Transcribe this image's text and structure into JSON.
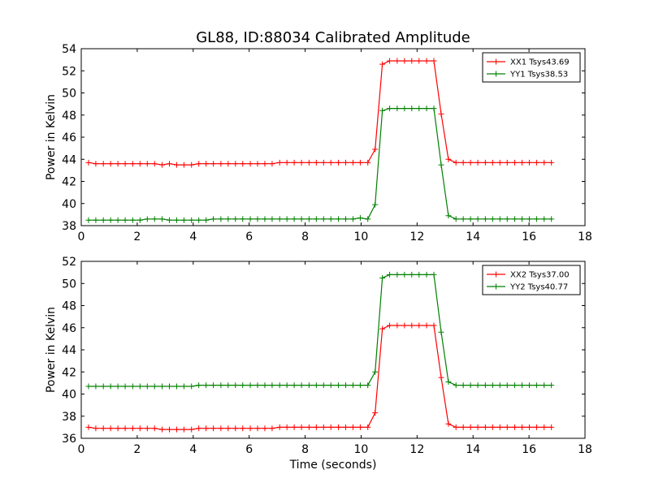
{
  "figure": {
    "title": "GL88, ID:88034 Calibrated Amplitude"
  },
  "chart_data": [
    {
      "type": "line",
      "xlabel": "",
      "ylabel": "Power in Kelvin",
      "xlim": [
        0,
        18
      ],
      "ylim": [
        38,
        54
      ],
      "xticks": [
        0,
        2,
        4,
        6,
        8,
        10,
        12,
        14,
        16,
        18
      ],
      "yticks": [
        38,
        40,
        42,
        44,
        46,
        48,
        50,
        52,
        54
      ],
      "legend_position": "top-right",
      "grid": false,
      "series": [
        {
          "name": "XX1 Tsys43.69",
          "color": "#ff0000",
          "x": [
            0.26,
            0.52,
            0.79,
            1.05,
            1.31,
            1.57,
            1.84,
            2.1,
            2.36,
            2.62,
            2.89,
            3.15,
            3.41,
            3.67,
            3.94,
            4.2,
            4.46,
            4.72,
            4.99,
            5.25,
            5.51,
            5.77,
            6.04,
            6.3,
            6.56,
            6.82,
            7.09,
            7.35,
            7.61,
            7.87,
            8.14,
            8.4,
            8.66,
            8.92,
            9.19,
            9.45,
            9.71,
            9.97,
            10.24,
            10.5,
            10.76,
            11.02,
            11.29,
            11.55,
            11.81,
            12.07,
            12.34,
            12.6,
            12.86,
            13.12,
            13.39,
            13.65,
            13.91,
            14.17,
            14.44,
            14.7,
            14.96,
            15.22,
            15.49,
            15.75,
            16.01,
            16.27,
            16.54,
            16.8
          ],
          "y": [
            43.7,
            43.6,
            43.6,
            43.6,
            43.6,
            43.6,
            43.6,
            43.6,
            43.6,
            43.6,
            43.5,
            43.6,
            43.5,
            43.5,
            43.5,
            43.6,
            43.6,
            43.6,
            43.6,
            43.6,
            43.6,
            43.6,
            43.6,
            43.6,
            43.6,
            43.6,
            43.7,
            43.7,
            43.7,
            43.7,
            43.7,
            43.7,
            43.7,
            43.7,
            43.7,
            43.7,
            43.7,
            43.7,
            43.7,
            44.9,
            52.6,
            52.9,
            52.9,
            52.9,
            52.9,
            52.9,
            52.9,
            52.9,
            48.1,
            44.0,
            43.7,
            43.7,
            43.7,
            43.7,
            43.7,
            43.7,
            43.7,
            43.7,
            43.7,
            43.7,
            43.7,
            43.7,
            43.7,
            43.7
          ]
        },
        {
          "name": "YY1 Tsys38.53",
          "color": "#008000",
          "x": [
            0.26,
            0.52,
            0.79,
            1.05,
            1.31,
            1.57,
            1.84,
            2.1,
            2.36,
            2.62,
            2.89,
            3.15,
            3.41,
            3.67,
            3.94,
            4.2,
            4.46,
            4.72,
            4.99,
            5.25,
            5.51,
            5.77,
            6.04,
            6.3,
            6.56,
            6.82,
            7.09,
            7.35,
            7.61,
            7.87,
            8.14,
            8.4,
            8.66,
            8.92,
            9.19,
            9.45,
            9.71,
            9.97,
            10.24,
            10.5,
            10.76,
            11.02,
            11.29,
            11.55,
            11.81,
            12.07,
            12.34,
            12.6,
            12.86,
            13.12,
            13.39,
            13.65,
            13.91,
            14.17,
            14.44,
            14.7,
            14.96,
            15.22,
            15.49,
            15.75,
            16.01,
            16.27,
            16.54,
            16.8
          ],
          "y": [
            38.5,
            38.5,
            38.5,
            38.5,
            38.5,
            38.5,
            38.5,
            38.5,
            38.6,
            38.6,
            38.6,
            38.5,
            38.5,
            38.5,
            38.5,
            38.5,
            38.5,
            38.6,
            38.6,
            38.6,
            38.6,
            38.6,
            38.6,
            38.6,
            38.6,
            38.6,
            38.6,
            38.6,
            38.6,
            38.6,
            38.6,
            38.6,
            38.6,
            38.6,
            38.6,
            38.6,
            38.6,
            38.7,
            38.6,
            39.9,
            48.4,
            48.6,
            48.6,
            48.6,
            48.6,
            48.6,
            48.6,
            48.6,
            43.5,
            38.9,
            38.6,
            38.6,
            38.6,
            38.6,
            38.6,
            38.6,
            38.6,
            38.6,
            38.6,
            38.6,
            38.6,
            38.6,
            38.6,
            38.6
          ]
        }
      ]
    },
    {
      "type": "line",
      "xlabel": "Time (seconds)",
      "ylabel": "Power in Kelvin",
      "xlim": [
        0,
        18
      ],
      "ylim": [
        36,
        52
      ],
      "xticks": [
        0,
        2,
        4,
        6,
        8,
        10,
        12,
        14,
        16,
        18
      ],
      "yticks": [
        36,
        38,
        40,
        42,
        44,
        46,
        48,
        50,
        52
      ],
      "legend_position": "top-right",
      "grid": false,
      "series": [
        {
          "name": "XX2 Tsys37.00",
          "color": "#ff0000",
          "x": [
            0.26,
            0.52,
            0.79,
            1.05,
            1.31,
            1.57,
            1.84,
            2.1,
            2.36,
            2.62,
            2.89,
            3.15,
            3.41,
            3.67,
            3.94,
            4.2,
            4.46,
            4.72,
            4.99,
            5.25,
            5.51,
            5.77,
            6.04,
            6.3,
            6.56,
            6.82,
            7.09,
            7.35,
            7.61,
            7.87,
            8.14,
            8.4,
            8.66,
            8.92,
            9.19,
            9.45,
            9.71,
            9.97,
            10.24,
            10.5,
            10.76,
            11.02,
            11.29,
            11.55,
            11.81,
            12.07,
            12.34,
            12.6,
            12.86,
            13.12,
            13.39,
            13.65,
            13.91,
            14.17,
            14.44,
            14.7,
            14.96,
            15.22,
            15.49,
            15.75,
            16.01,
            16.27,
            16.54,
            16.8
          ],
          "y": [
            37.0,
            36.9,
            36.9,
            36.9,
            36.9,
            36.9,
            36.9,
            36.9,
            36.9,
            36.9,
            36.8,
            36.8,
            36.8,
            36.8,
            36.8,
            36.9,
            36.9,
            36.9,
            36.9,
            36.9,
            36.9,
            36.9,
            36.9,
            36.9,
            36.9,
            36.9,
            37.0,
            37.0,
            37.0,
            37.0,
            37.0,
            37.0,
            37.0,
            37.0,
            37.0,
            37.0,
            37.0,
            37.0,
            37.0,
            38.3,
            45.9,
            46.2,
            46.2,
            46.2,
            46.2,
            46.2,
            46.2,
            46.2,
            41.5,
            37.3,
            37.0,
            37.0,
            37.0,
            37.0,
            37.0,
            37.0,
            37.0,
            37.0,
            37.0,
            37.0,
            37.0,
            37.0,
            37.0,
            37.0
          ]
        },
        {
          "name": "YY2 Tsys40.77",
          "color": "#008000",
          "x": [
            0.26,
            0.52,
            0.79,
            1.05,
            1.31,
            1.57,
            1.84,
            2.1,
            2.36,
            2.62,
            2.89,
            3.15,
            3.41,
            3.67,
            3.94,
            4.2,
            4.46,
            4.72,
            4.99,
            5.25,
            5.51,
            5.77,
            6.04,
            6.3,
            6.56,
            6.82,
            7.09,
            7.35,
            7.61,
            7.87,
            8.14,
            8.4,
            8.66,
            8.92,
            9.19,
            9.45,
            9.71,
            9.97,
            10.24,
            10.5,
            10.76,
            11.02,
            11.29,
            11.55,
            11.81,
            12.07,
            12.34,
            12.6,
            12.86,
            13.12,
            13.39,
            13.65,
            13.91,
            14.17,
            14.44,
            14.7,
            14.96,
            15.22,
            15.49,
            15.75,
            16.01,
            16.27,
            16.54,
            16.8
          ],
          "y": [
            40.7,
            40.7,
            40.7,
            40.7,
            40.7,
            40.7,
            40.7,
            40.7,
            40.7,
            40.7,
            40.7,
            40.7,
            40.7,
            40.7,
            40.7,
            40.8,
            40.8,
            40.8,
            40.8,
            40.8,
            40.8,
            40.8,
            40.8,
            40.8,
            40.8,
            40.8,
            40.8,
            40.8,
            40.8,
            40.8,
            40.8,
            40.8,
            40.8,
            40.8,
            40.8,
            40.8,
            40.8,
            40.8,
            40.8,
            42.0,
            50.5,
            50.8,
            50.8,
            50.8,
            50.8,
            50.8,
            50.8,
            50.8,
            45.6,
            41.1,
            40.8,
            40.8,
            40.8,
            40.8,
            40.8,
            40.8,
            40.8,
            40.8,
            40.8,
            40.8,
            40.8,
            40.8,
            40.8,
            40.8
          ]
        }
      ]
    }
  ]
}
